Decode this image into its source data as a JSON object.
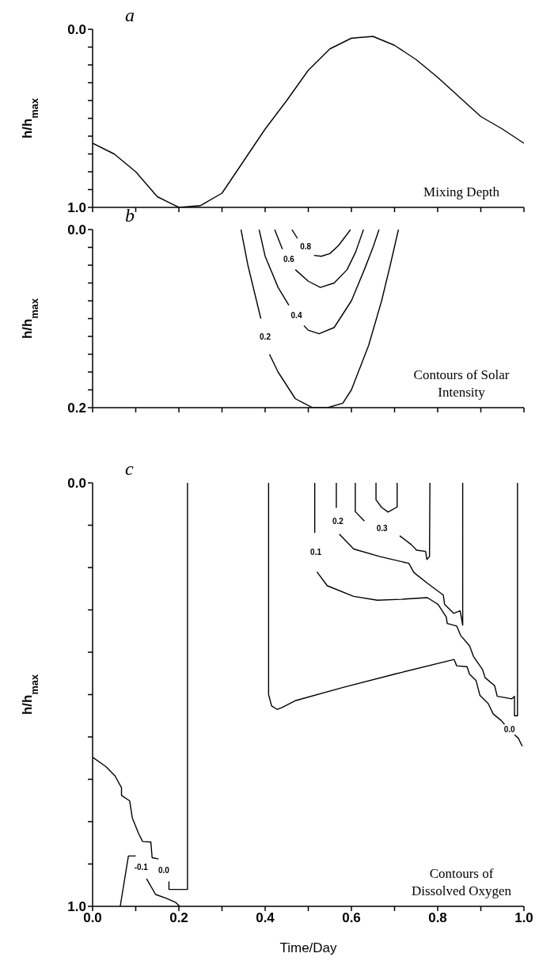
{
  "chart_data": [
    {
      "type": "line",
      "title": "a",
      "ylabel": "h/h$_{max}$",
      "annotations": [
        "Mixing Depth"
      ],
      "tick_labels": "y",
      "xlim": [
        0,
        1
      ],
      "xticks": [
        0,
        0.1,
        0.2,
        0.3,
        0.4,
        0.5,
        0.6,
        0.7,
        0.8,
        0.9,
        1
      ],
      "ylim": [
        1,
        0
      ],
      "yticks": [
        {
          "value": 0,
          "label": "0.0"
        },
        {
          "value": 0.1,
          "label": null
        },
        {
          "value": 0.2,
          "label": null
        },
        {
          "value": 0.3,
          "label": null
        },
        {
          "value": 0.4,
          "label": null
        },
        {
          "value": 0.5,
          "label": null
        },
        {
          "value": 0.6,
          "label": null
        },
        {
          "value": 0.7,
          "label": null
        },
        {
          "value": 0.8,
          "label": null
        },
        {
          "value": 0.9,
          "label": null
        },
        {
          "value": 1,
          "label": "1.0"
        }
      ],
      "series": [
        {
          "color": "#000000",
          "x": [
            0,
            0.05,
            0.1,
            0.15,
            0.2,
            0.25,
            0.3,
            0.35,
            0.4,
            0.45,
            0.5,
            0.55,
            0.6,
            0.65,
            0.7,
            0.75,
            0.8,
            0.85,
            0.9,
            0.95,
            1
          ],
          "values": [
            0.64,
            0.7,
            0.8,
            0.94,
            1,
            0.99,
            0.92,
            0.74,
            0.56,
            0.4,
            0.23,
            0.11,
            0.05,
            0.04,
            0.09,
            0.17,
            0.27,
            0.38,
            0.49,
            0.56,
            0.64
          ]
        }
      ]
    },
    {
      "type": "line",
      "title": "b",
      "ylabel": "h/h$_{max}$",
      "annotations": [
        "Contours of Solar Intensity"
      ],
      "tick_labels": "y",
      "xlim": [
        0,
        1
      ],
      "xticks": [
        0,
        0.1,
        0.2,
        0.3,
        0.4,
        0.5,
        0.6,
        0.7,
        0.8,
        0.9,
        1
      ],
      "ylim": [
        0.2,
        0
      ],
      "yticks": [
        {
          "value": 0,
          "label": "0.0"
        },
        {
          "value": 0.02,
          "label": null
        },
        {
          "value": 0.04,
          "label": null
        },
        {
          "value": 0.06,
          "label": null
        },
        {
          "value": 0.08,
          "label": null
        },
        {
          "value": 0.1,
          "label": null
        },
        {
          "value": 0.12,
          "label": null
        },
        {
          "value": 0.14,
          "label": null
        },
        {
          "value": 0.16,
          "label": null
        },
        {
          "value": 0.18,
          "label": null
        },
        {
          "value": 0.2,
          "label": "0.2"
        }
      ],
      "series": [
        {
          "name": "0.2",
          "color": "#000000",
          "x": [
            0.344,
            0.36,
            0.38,
            0.39,
            null,
            0.41,
            0.43,
            0.47,
            0.51,
            0.545,
            0.58,
            0.6,
            0.64,
            0.67,
            0.69,
            0.709
          ],
          "values": [
            0,
            0.04,
            0.08,
            0.1,
            null,
            0.14,
            0.16,
            0.19,
            0.2,
            0.2,
            0.195,
            0.18,
            0.13,
            0.08,
            0.04,
            0
          ]
        },
        {
          "name": "0.4",
          "color": "#000000",
          "x": [
            0.386,
            0.4,
            0.43,
            0.455,
            null,
            0.49,
            0.5,
            0.525,
            0.56,
            0.6,
            0.63,
            0.65,
            0.664
          ],
          "values": [
            0,
            0.03,
            0.065,
            0.085,
            null,
            0.108,
            0.113,
            0.117,
            0.11,
            0.08,
            0.045,
            0.02,
            0
          ]
        },
        {
          "name": "0.6",
          "color": "#000000",
          "x": [
            0.422,
            0.44,
            null,
            0.47,
            0.5,
            0.528,
            0.56,
            0.59,
            0.61,
            0.628
          ],
          "values": [
            0,
            0.022,
            null,
            0.045,
            0.058,
            0.065,
            0.06,
            0.045,
            0.025,
            0
          ]
        },
        {
          "name": "0.8",
          "color": "#000000",
          "x": [
            0.462,
            0.475,
            null,
            0.513,
            0.53,
            0.55,
            0.57,
            0.598
          ],
          "values": [
            0,
            0.01,
            null,
            0.029,
            0.03,
            0.027,
            0.018,
            0
          ]
        }
      ]
    },
    {
      "type": "line",
      "title": "c",
      "ylabel": "h/h$_{max}$",
      "xlabel": "Time/Day",
      "annotations": [
        "Contours of Dissolved Oxygen"
      ],
      "xlim": [
        0,
        1
      ],
      "xticks": [
        {
          "value": 0,
          "label": "0.0"
        },
        {
          "value": 0.1,
          "label": null
        },
        {
          "value": 0.2,
          "label": "0.2"
        },
        {
          "value": 0.3,
          "label": null
        },
        {
          "value": 0.4,
          "label": "0.4"
        },
        {
          "value": 0.5,
          "label": null
        },
        {
          "value": 0.6,
          "label": "0.6"
        },
        {
          "value": 0.7,
          "label": null
        },
        {
          "value": 0.8,
          "label": "0.8"
        },
        {
          "value": 0.9,
          "label": null
        },
        {
          "value": 1,
          "label": "1.0"
        }
      ],
      "ylim": [
        1,
        0
      ],
      "yticks": [
        {
          "value": 0,
          "label": "0.0"
        },
        {
          "value": 0.1,
          "label": null
        },
        {
          "value": 0.2,
          "label": null
        },
        {
          "value": 0.3,
          "label": null
        },
        {
          "value": 0.4,
          "label": null
        },
        {
          "value": 0.5,
          "label": null
        },
        {
          "value": 0.6,
          "label": null
        },
        {
          "value": 0.7,
          "label": null
        },
        {
          "value": 0.8,
          "label": null
        },
        {
          "value": 0.9,
          "label": null
        },
        {
          "value": 1,
          "label": "1.0"
        }
      ],
      "series": [
        {
          "name": "0.0",
          "color": "#000000",
          "x": [
            0,
            0.031,
            0.052,
            0.067,
            0.067,
            0.086,
            0.092,
            0.107,
            0.116,
            0.135,
            0.138,
            0.153,
            null,
            0.177,
            0.177,
            0.22,
            0.22
          ],
          "values": [
            0.648,
            0.67,
            0.692,
            0.72,
            0.738,
            0.751,
            0.791,
            0.829,
            0.847,
            0.848,
            0.885,
            0.888,
            null,
            0.941,
            0.96,
            0.96,
            0
          ]
        },
        {
          "name": "-0.1",
          "color": "#000000",
          "x": [
            0.064,
            0.083,
            0.1,
            null,
            0.125,
            0.146,
            0.171,
            0.193,
            0.202
          ],
          "values": [
            1,
            0.881,
            0.881,
            null,
            0.935,
            0.972,
            0.981,
            0.991,
            1
          ]
        },
        {
          "name": "0.0",
          "color": "#000000",
          "x": [
            0.408,
            0.408,
            0.415,
            0.428,
            0.44,
            0.471,
            0.581,
            0.703,
            0.838,
            0.844,
            0.868,
            0.874,
            0.889,
            0.898,
            0.917,
            0.929,
            0.947,
            0.955,
            null,
            0.978,
            0.987,
            0.996
          ],
          "values": [
            0,
            0.5,
            0.527,
            0.535,
            0.53,
            0.514,
            0.483,
            0.451,
            0.417,
            0.432,
            0.434,
            0.452,
            0.467,
            0.502,
            0.521,
            0.546,
            0.561,
            0.57,
            null,
            0.595,
            0.603,
            0.622
          ]
        },
        {
          "name": "0.1",
          "color": "#000000",
          "x": [
            0.515,
            0.515,
            null,
            0.52,
            0.544,
            0.605,
            0.66,
            0.715,
            0.776,
            0.801,
            0.82,
            0.822,
            0.844,
            0.853,
            0.874,
            0.883,
            0.904,
            0.91,
            0.932,
            0.938,
            0.972,
            0.978,
            0.978,
            0.985,
            0.985
          ],
          "values": [
            0,
            0.118,
            null,
            0.21,
            0.243,
            0.268,
            0.277,
            0.275,
            0.271,
            0.287,
            0.317,
            0.332,
            0.338,
            0.36,
            0.385,
            0.41,
            0.441,
            0.46,
            0.479,
            0.504,
            0.51,
            0.504,
            0.55,
            0.55,
            0
          ]
        },
        {
          "name": "0.2",
          "color": "#000000",
          "x": [
            0.565,
            0.565,
            null,
            0.572,
            0.605,
            0.666,
            0.733,
            0.745,
            0.776,
            0.813,
            0.816,
            0.837,
            0.852,
            0.858,
            0.858
          ],
          "values": [
            0,
            0.059,
            null,
            0.121,
            0.156,
            0.174,
            0.19,
            0.212,
            0.237,
            0.265,
            0.287,
            0.308,
            0.302,
            0.336,
            0
          ]
        },
        {
          "name": "0.3",
          "color": "#000000",
          "x": [
            0.609,
            0.609,
            0.63,
            null,
            0.712,
            0.739,
            0.751,
            0.772,
            0.775,
            0.781,
            0.782
          ],
          "values": [
            0,
            0.068,
            0.09,
            null,
            0.125,
            0.146,
            0.159,
            0.162,
            0.181,
            0.174,
            0
          ]
        },
        {
          "color": "#000000",
          "x": [
            0.657,
            0.657,
            0.67,
            0.685,
            0.706,
            0.706
          ],
          "values": [
            0,
            0.04,
            0.058,
            0.069,
            0.057,
            0
          ]
        }
      ]
    }
  ]
}
